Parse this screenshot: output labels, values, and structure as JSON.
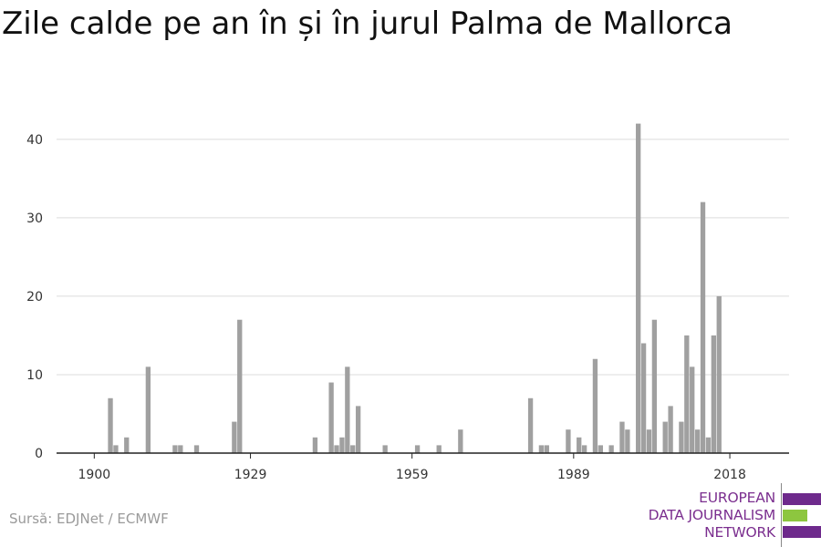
{
  "title": "Zile calde pe an în și în jurul Palma de Mallorca",
  "source": "Sursă: EDJNet / ECMWF",
  "logo": {
    "lines": [
      "EUROPEAN",
      "DATA JOURNALISM",
      "NETWORK"
    ],
    "colors": {
      "purple": "#6e2a8c",
      "green": "#8dc63f"
    }
  },
  "chart_data": {
    "type": "bar",
    "title": "Zile calde pe an în și în jurul Palma de Mallorca",
    "xlabel": "",
    "ylabel": "",
    "x_tick_labels": [
      "1900",
      "1929",
      "1959",
      "1989",
      "2018"
    ],
    "y_ticks": [
      0,
      10,
      20,
      30,
      40
    ],
    "ylim": [
      0,
      43
    ],
    "xlim": [
      1893,
      2029
    ],
    "bar_color": "#a0a0a0",
    "grid": true,
    "x": [
      1903,
      1904,
      1906,
      1910,
      1915,
      1916,
      1919,
      1926,
      1927,
      1941,
      1944,
      1945,
      1946,
      1947,
      1948,
      1949,
      1954,
      1960,
      1964,
      1968,
      1981,
      1983,
      1984,
      1988,
      1990,
      1991,
      1993,
      1994,
      1996,
      1998,
      1999,
      2001,
      2002,
      2003,
      2004,
      2006,
      2007,
      2009,
      2010,
      2011,
      2012,
      2013,
      2014,
      2015,
      2016,
      2017
    ],
    "values": [
      7,
      1,
      2,
      11,
      1,
      1,
      1,
      4,
      17,
      2,
      9,
      1,
      2,
      11,
      1,
      6,
      1,
      1,
      1,
      3,
      7,
      1,
      1,
      3,
      2,
      1,
      12,
      1,
      1,
      4,
      3,
      42,
      14,
      3,
      17,
      4,
      6,
      4,
      15,
      11,
      3,
      32,
      2,
      15,
      20,
      0
    ]
  }
}
